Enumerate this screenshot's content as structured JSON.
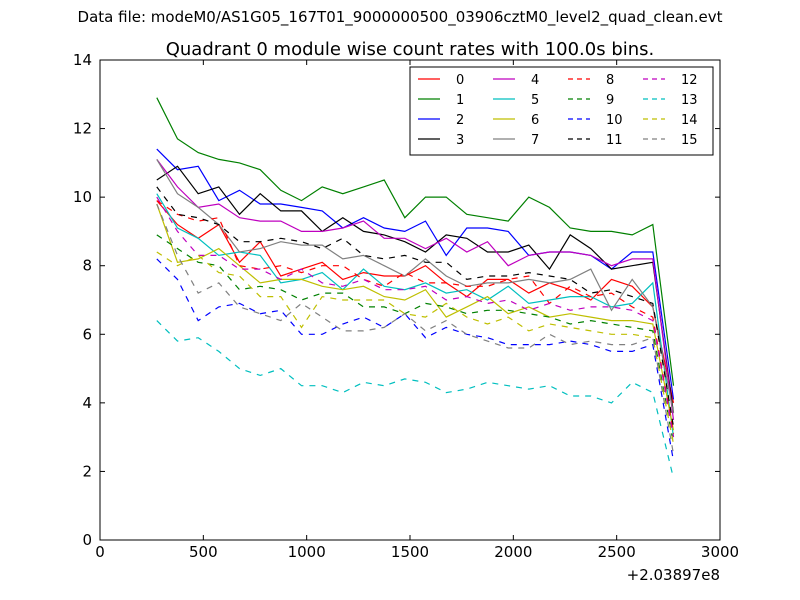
{
  "page": {
    "suptitle": "Data file: modeM0/AS1G05_167T01_9000000500_03906cztM0_level2_quad_clean.evt"
  },
  "chart_data": {
    "type": "line",
    "title": "Quadrant 0 module wise count rates with 100.0s bins.",
    "xlabel": "",
    "ylabel": "",
    "x_offset_label": "+2.03897e8",
    "xlim": [
      0,
      3000
    ],
    "ylim": [
      0,
      14
    ],
    "xticks": [
      0,
      500,
      1000,
      1500,
      2000,
      2500,
      3000
    ],
    "yticks": [
      0,
      2,
      4,
      6,
      8,
      10,
      12,
      14
    ],
    "grid": false,
    "legend": {
      "placement": "top-right",
      "columns": 4
    },
    "x": [
      275,
      375,
      475,
      575,
      675,
      775,
      875,
      975,
      1075,
      1175,
      1275,
      1375,
      1475,
      1575,
      1675,
      1775,
      1875,
      1975,
      2075,
      2175,
      2275,
      2375,
      2475,
      2575,
      2675,
      2775
    ],
    "series": [
      {
        "name": "0",
        "color": "#ff0000",
        "dash": false,
        "values": [
          9.9,
          9.2,
          8.8,
          9.2,
          8.1,
          8.7,
          7.7,
          7.9,
          8.1,
          7.6,
          7.8,
          7.7,
          7.7,
          8.0,
          7.5,
          7.1,
          7.6,
          7.6,
          7.2,
          7.5,
          7.3,
          7.0,
          7.6,
          7.4,
          6.8,
          4.0
        ]
      },
      {
        "name": "1",
        "color": "#008000",
        "dash": false,
        "values": [
          12.9,
          11.7,
          11.3,
          11.1,
          11.0,
          10.8,
          10.2,
          9.9,
          10.3,
          10.1,
          10.3,
          10.5,
          9.4,
          10.0,
          10.0,
          9.5,
          9.4,
          9.3,
          10.0,
          9.7,
          9.1,
          9.0,
          9.0,
          8.9,
          9.2,
          4.5
        ]
      },
      {
        "name": "2",
        "color": "#0000ff",
        "dash": false,
        "values": [
          11.4,
          10.8,
          10.9,
          9.9,
          10.2,
          9.8,
          9.8,
          9.7,
          9.6,
          9.1,
          9.4,
          9.1,
          9.0,
          9.3,
          8.3,
          9.1,
          9.1,
          9.0,
          8.3,
          8.4,
          8.4,
          8.3,
          7.9,
          8.4,
          8.4,
          4.1
        ]
      },
      {
        "name": "3",
        "color": "#000000",
        "dash": false,
        "values": [
          10.5,
          10.9,
          10.1,
          10.3,
          9.5,
          10.1,
          9.6,
          9.6,
          9.0,
          9.4,
          9.0,
          8.9,
          8.7,
          8.4,
          8.9,
          8.8,
          8.4,
          8.4,
          8.6,
          7.9,
          8.9,
          8.5,
          7.9,
          8.0,
          8.1,
          3.7
        ]
      },
      {
        "name": "4",
        "color": "#bf00bf",
        "dash": false,
        "values": [
          11.1,
          10.3,
          9.7,
          9.8,
          9.4,
          9.3,
          9.3,
          9.0,
          9.0,
          9.1,
          9.3,
          8.8,
          8.8,
          8.5,
          8.8,
          8.4,
          8.7,
          8.0,
          8.3,
          8.4,
          8.4,
          8.3,
          8.0,
          8.2,
          8.2,
          3.5
        ]
      },
      {
        "name": "5",
        "color": "#00bfbf",
        "dash": false,
        "values": [
          10.1,
          9.1,
          8.8,
          8.3,
          8.4,
          8.3,
          7.5,
          7.6,
          7.8,
          7.3,
          7.9,
          7.4,
          7.3,
          7.5,
          7.2,
          7.3,
          7.0,
          7.4,
          6.9,
          7.0,
          7.1,
          7.1,
          6.8,
          6.9,
          7.5,
          3.0
        ]
      },
      {
        "name": "6",
        "color": "#bfbf00",
        "dash": false,
        "values": [
          9.8,
          8.1,
          8.2,
          8.5,
          8.0,
          7.5,
          7.6,
          7.6,
          7.4,
          7.3,
          7.4,
          7.1,
          7.0,
          7.3,
          6.5,
          6.8,
          7.1,
          6.6,
          6.8,
          6.5,
          6.6,
          6.5,
          6.4,
          6.4,
          6.3,
          3.2
        ]
      },
      {
        "name": "7",
        "color": "#808080",
        "dash": false,
        "values": [
          11.1,
          10.1,
          9.7,
          9.2,
          8.4,
          8.5,
          8.7,
          8.6,
          8.6,
          8.2,
          8.3,
          8.0,
          7.7,
          8.2,
          7.7,
          7.4,
          7.5,
          7.5,
          7.6,
          7.5,
          7.6,
          7.9,
          6.7,
          7.6,
          6.8,
          3.7
        ]
      },
      {
        "name": "8",
        "color": "#ff0000",
        "dash": true,
        "values": [
          9.9,
          9.5,
          9.3,
          9.4,
          8.0,
          7.9,
          8.0,
          7.8,
          8.0,
          8.0,
          7.6,
          7.4,
          7.8,
          7.5,
          7.5,
          7.4,
          7.4,
          7.6,
          7.7,
          6.9,
          7.4,
          7.1,
          7.2,
          6.8,
          6.5,
          3.1
        ]
      },
      {
        "name": "9",
        "color": "#008000",
        "dash": true,
        "values": [
          8.9,
          8.5,
          8.1,
          8.0,
          7.3,
          7.4,
          7.3,
          7.0,
          7.2,
          7.2,
          6.8,
          6.8,
          6.6,
          6.9,
          6.8,
          6.6,
          6.7,
          6.7,
          6.6,
          6.5,
          6.3,
          6.4,
          6.3,
          6.2,
          6.1,
          2.8
        ]
      },
      {
        "name": "10",
        "color": "#0000ff",
        "dash": true,
        "values": [
          8.2,
          7.6,
          6.4,
          6.8,
          6.9,
          6.6,
          6.7,
          6.0,
          6.0,
          6.3,
          6.5,
          6.2,
          6.6,
          5.9,
          6.2,
          6.0,
          5.9,
          5.7,
          5.7,
          5.7,
          5.8,
          5.7,
          5.5,
          5.5,
          5.7,
          2.3
        ]
      },
      {
        "name": "11",
        "color": "#000000",
        "dash": true,
        "values": [
          10.3,
          9.5,
          9.4,
          9.2,
          8.7,
          8.7,
          8.8,
          8.7,
          8.5,
          8.8,
          8.3,
          8.2,
          8.3,
          8.1,
          8.1,
          7.6,
          7.7,
          7.7,
          7.8,
          7.7,
          7.6,
          7.2,
          7.3,
          7.1,
          6.9,
          3.3
        ]
      },
      {
        "name": "12",
        "color": "#bf00bf",
        "dash": true,
        "values": [
          10.0,
          9.0,
          8.3,
          8.3,
          7.9,
          7.9,
          7.6,
          7.9,
          7.5,
          7.4,
          7.6,
          7.3,
          7.3,
          7.4,
          7.0,
          7.1,
          6.9,
          7.0,
          6.7,
          6.9,
          6.7,
          6.8,
          6.8,
          6.7,
          6.4,
          3.0
        ]
      },
      {
        "name": "13",
        "color": "#00bfbf",
        "dash": true,
        "values": [
          6.4,
          5.8,
          5.9,
          5.5,
          5.0,
          4.8,
          5.0,
          4.5,
          4.5,
          4.3,
          4.6,
          4.5,
          4.7,
          4.6,
          4.3,
          4.4,
          4.6,
          4.5,
          4.4,
          4.5,
          4.2,
          4.2,
          4.0,
          4.6,
          4.3,
          1.8
        ]
      },
      {
        "name": "14",
        "color": "#bfbf00",
        "dash": true,
        "values": [
          8.4,
          8.0,
          8.3,
          7.8,
          7.7,
          7.1,
          7.1,
          6.2,
          7.1,
          7.0,
          7.0,
          7.0,
          6.6,
          6.5,
          6.9,
          6.5,
          6.3,
          6.5,
          6.1,
          6.3,
          6.2,
          6.1,
          6.0,
          6.0,
          5.9,
          2.8
        ]
      },
      {
        "name": "15",
        "color": "#808080",
        "dash": true,
        "values": [
          9.8,
          8.3,
          7.2,
          7.5,
          6.8,
          6.6,
          6.4,
          6.9,
          6.5,
          6.1,
          6.1,
          6.2,
          6.6,
          6.1,
          6.4,
          6.0,
          5.8,
          5.6,
          5.6,
          6.0,
          5.7,
          5.8,
          5.7,
          5.7,
          5.9,
          2.5
        ]
      }
    ]
  }
}
